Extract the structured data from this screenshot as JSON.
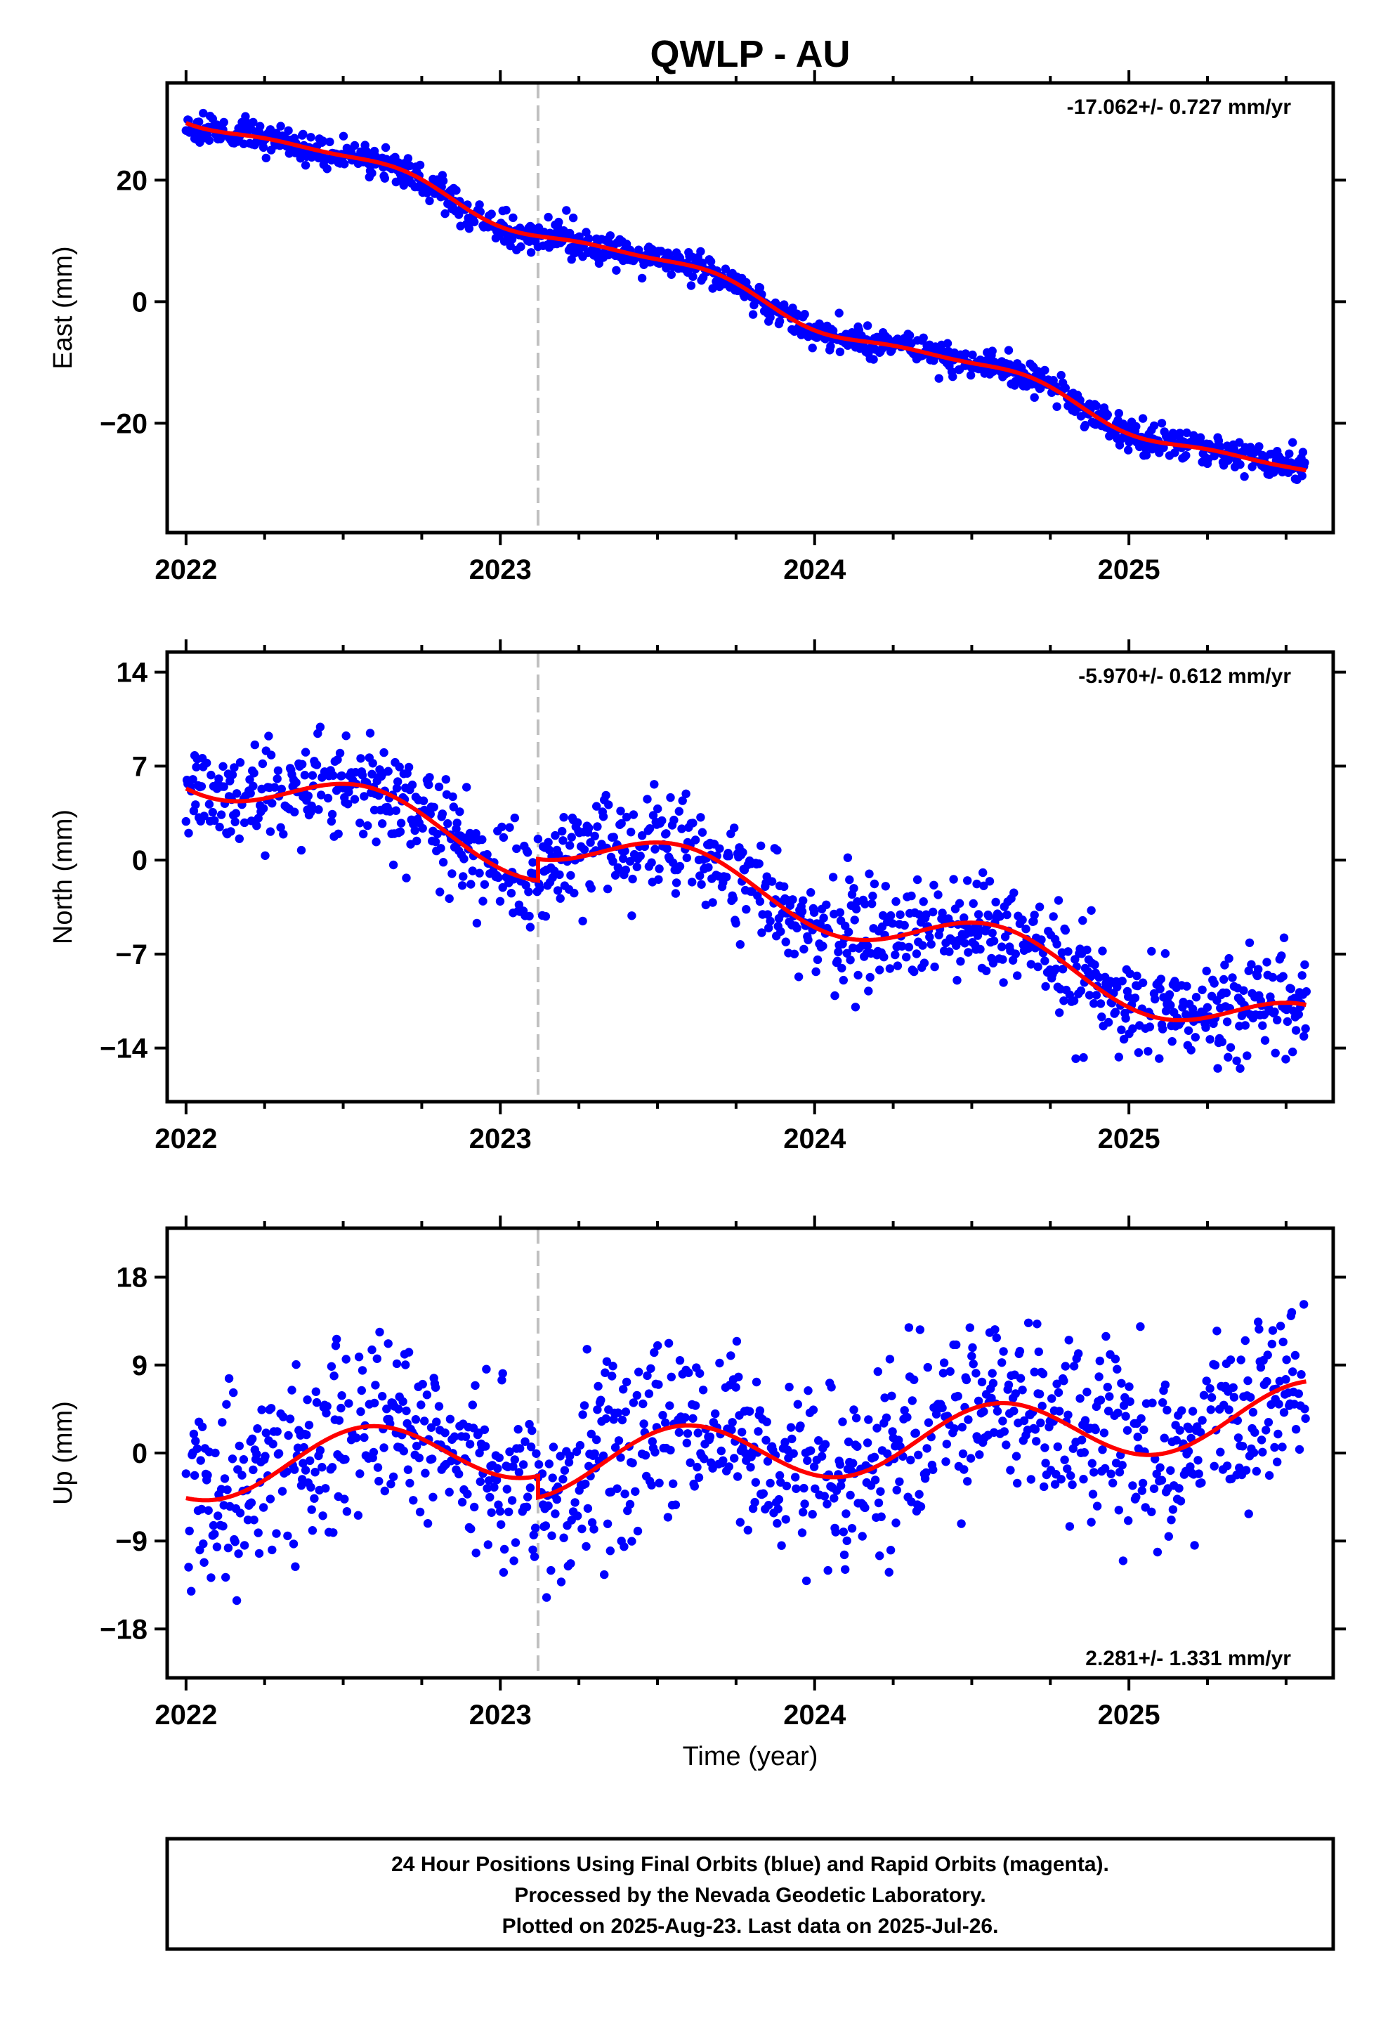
{
  "title": "QWLP - AU",
  "chart_data": [
    {
      "type": "scatter",
      "panel": "east",
      "ylabel": "East (mm)",
      "xlabel": "",
      "ylim": [
        -38,
        36
      ],
      "yticks": [
        -20,
        0,
        20
      ],
      "ytick_labels": [
        "−20",
        "0",
        "20"
      ],
      "xlim": [
        2021.94,
        2025.65
      ],
      "xticks": [
        2022,
        2023,
        2024,
        2025
      ],
      "xtick_labels": [
        "2022",
        "2023",
        "2024",
        "2025"
      ],
      "rate_label": "-17.062+/- 0.727 mm/yr",
      "rate_position": "top-right",
      "offset_line_x": 2023.12,
      "trend": {
        "intercept_2022": 31.5,
        "rate": -17.062,
        "amp1": 1.8,
        "amp2": 0.55,
        "step": 0
      },
      "noise_sd": 1.3,
      "seed": 11,
      "series": [
        {
          "name": "Final Orbits",
          "color": "#0000ff"
        },
        {
          "name": "Model",
          "color": "#ff0000"
        }
      ]
    },
    {
      "type": "scatter",
      "panel": "north",
      "ylabel": "North (mm)",
      "xlabel": "",
      "ylim": [
        -18,
        15.5
      ],
      "yticks": [
        -14,
        -7,
        0,
        7,
        14
      ],
      "ytick_labels": [
        "−14",
        "−7",
        "0",
        "7",
        "14"
      ],
      "xlim": [
        2021.94,
        2025.65
      ],
      "xticks": [
        2022,
        2023,
        2024,
        2025
      ],
      "xtick_labels": [
        "2022",
        "2023",
        "2024",
        "2025"
      ],
      "rate_label": "-5.970+/- 0.612 mm/yr",
      "rate_position": "top-right",
      "offset_line_x": 2023.12,
      "trend": {
        "intercept_2022": 7.0,
        "rate": -5.97,
        "amp1": 1.9,
        "amp2": 0.0,
        "step": 1.6
      },
      "noise_sd": 1.9,
      "seed": 23,
      "series": [
        {
          "name": "Final Orbits",
          "color": "#0000ff"
        },
        {
          "name": "Model",
          "color": "#ff0000"
        }
      ]
    },
    {
      "type": "scatter",
      "panel": "up",
      "ylabel": "Up (mm)",
      "xlabel": "Time (year)",
      "ylim": [
        -23,
        23
      ],
      "yticks": [
        -18,
        -9,
        0,
        9,
        18
      ],
      "ytick_labels": [
        "−18",
        "−9",
        "0",
        "9",
        "18"
      ],
      "xlim": [
        2021.94,
        2025.65
      ],
      "xticks": [
        2022,
        2023,
        2024,
        2025
      ],
      "xtick_labels": [
        "2022",
        "2023",
        "2024",
        "2025"
      ],
      "rate_label": "2.281+/- 1.331 mm/yr",
      "rate_position": "bottom-right",
      "offset_line_x": 2023.12,
      "trend": {
        "intercept_2022": -1.8,
        "rate": 2.281,
        "amp1": 3.2,
        "amp2": 0.0,
        "step": -2.2
      },
      "noise_sd": 4.6,
      "seed": 37,
      "series": [
        {
          "name": "Final Orbits",
          "color": "#0000ff"
        },
        {
          "name": "Model",
          "color": "#ff0000"
        }
      ]
    }
  ],
  "footer": {
    "line1": "24 Hour Positions Using Final Orbits (blue) and Rapid Orbits (magenta).",
    "line2": "Processed by the Nevada Geodetic Laboratory.",
    "line3": "Plotted on 2025-Aug-23. Last data on 2025-Jul-26."
  },
  "colors": {
    "points": "#0000ff",
    "model": "#ff0000",
    "offset": "#c0c0c0",
    "frame": "#000000"
  }
}
